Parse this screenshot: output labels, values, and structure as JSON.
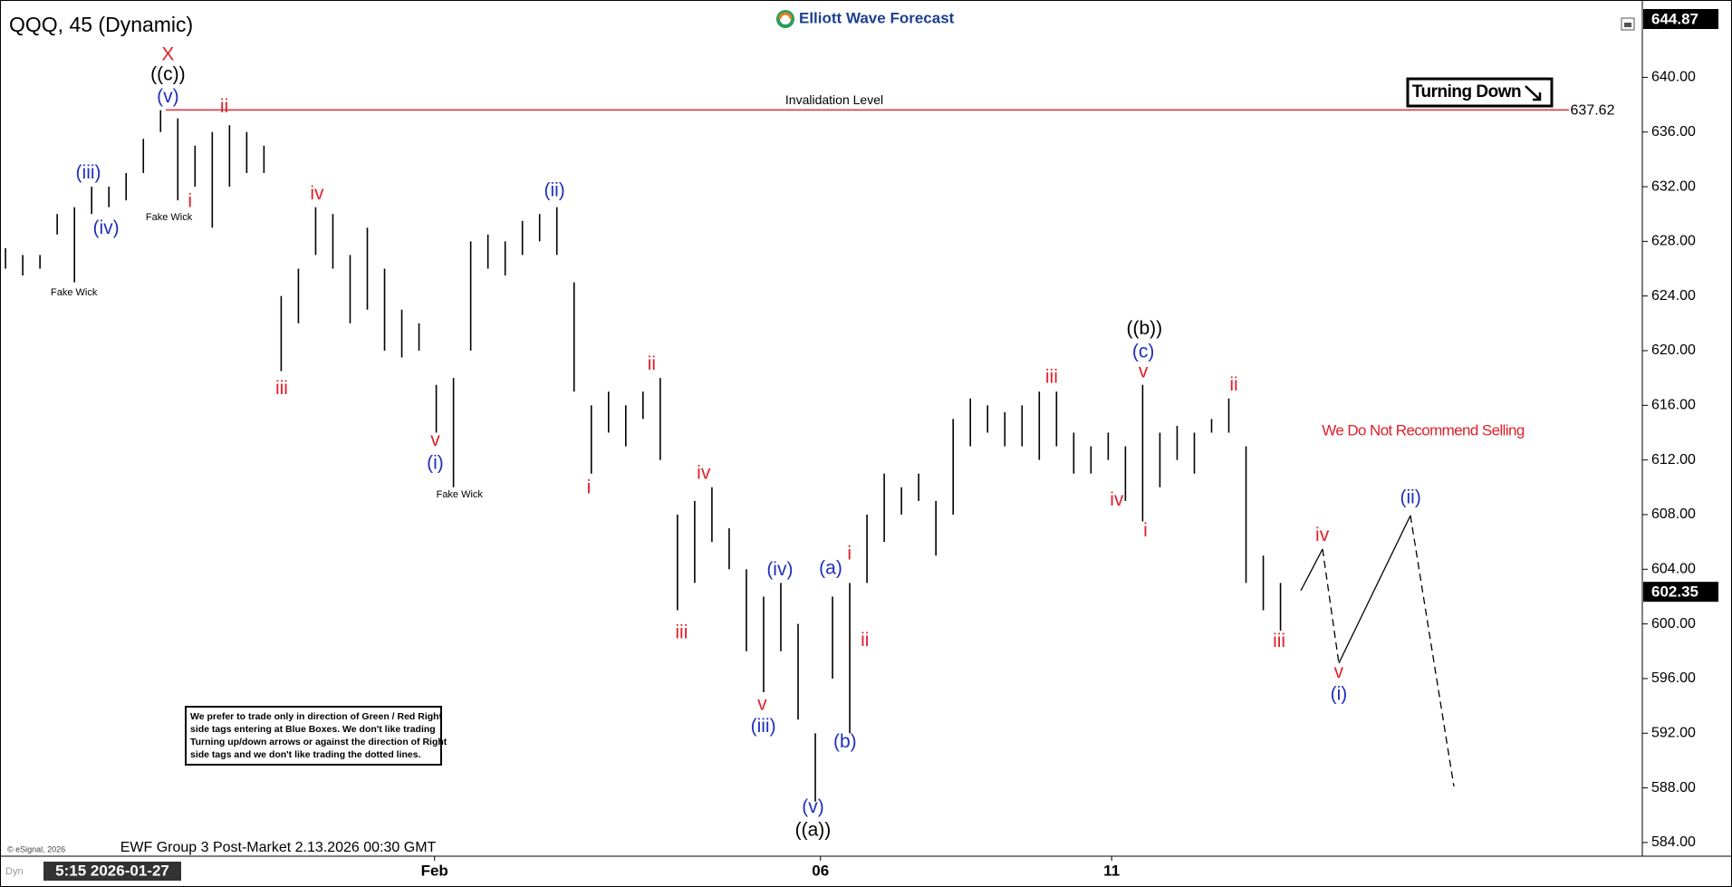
{
  "chart_data": {
    "type": "ohlc",
    "title": "QQQ, 45 (Dynamic)",
    "brand": "Elliott Wave Forecast",
    "highs": [
      627.5,
      627,
      627,
      630,
      630.5,
      632,
      632,
      633,
      635.5,
      637.6,
      637,
      635,
      636,
      636.5,
      636,
      635,
      624,
      626,
      630.5,
      630,
      627,
      629,
      626,
      623,
      622,
      617.5,
      618,
      628,
      628.5,
      628,
      629.5,
      630,
      630.5,
      625,
      616,
      617,
      616,
      617,
      618,
      608,
      609,
      610,
      607,
      604,
      602,
      603,
      600,
      592,
      602,
      603,
      608,
      611,
      610,
      611,
      609,
      615,
      616.5,
      616,
      615.5,
      616,
      617,
      617,
      614,
      613,
      614,
      613,
      617.5,
      614,
      614.5,
      614,
      615,
      616.5,
      613,
      605,
      603
    ],
    "lows": [
      626,
      625.5,
      626,
      628.5,
      625,
      630,
      630.5,
      631,
      633,
      636,
      631,
      632,
      629,
      632,
      633,
      633,
      618.5,
      622,
      627,
      626,
      622,
      623,
      620,
      619.5,
      620,
      614,
      610,
      620,
      626,
      625.5,
      627,
      628,
      627,
      617,
      611,
      614,
      613,
      615,
      612,
      601,
      603,
      606,
      604,
      598,
      595,
      598,
      593,
      587,
      596,
      592,
      603,
      606,
      608,
      609,
      605,
      608,
      613,
      614,
      613,
      613,
      612,
      613,
      611,
      611,
      612,
      609,
      607.5,
      610,
      612,
      611,
      614,
      614,
      603,
      601,
      599.5
    ],
    "xlim": [
      -0.32,
      95
    ],
    "xticks": [
      {
        "value": 24.9,
        "label": "Feb"
      },
      {
        "value": 47.3,
        "label": "06"
      },
      {
        "value": 64.2,
        "label": "11"
      }
    ],
    "ylim": [
      583,
      645
    ],
    "yticks": [
      {
        "value": 584,
        "label": "584.00"
      },
      {
        "value": 588,
        "label": "588.00"
      },
      {
        "value": 592,
        "label": "592.00"
      },
      {
        "value": 596,
        "label": "596.00"
      },
      {
        "value": 600,
        "label": "600.00"
      },
      {
        "value": 604,
        "label": "604.00"
      },
      {
        "value": 608,
        "label": "608.00"
      },
      {
        "value": 612,
        "label": "612.00"
      },
      {
        "value": 616,
        "label": "616.00"
      },
      {
        "value": 620,
        "label": "620.00"
      },
      {
        "value": 624,
        "label": "624.00"
      },
      {
        "value": 628,
        "label": "628.00"
      },
      {
        "value": 632,
        "label": "632.00"
      },
      {
        "value": 636,
        "label": "636.00"
      },
      {
        "value": 640,
        "label": "640.00"
      }
    ],
    "grid": false,
    "bar_color": "#000000",
    "top_price": 644.87,
    "last_price": 602.35,
    "invalidation_level": 637.62,
    "invalidation_label": "Invalidation Level",
    "invalidation_color": "#e0202a",
    "tag": "Turning Down",
    "recommendation": "We Do Not Recommend Selling",
    "disclaimer": [
      "We prefer to trade only in direction of Green / Red Right",
      "side tags entering at Blue Boxes. We don't like trading",
      "Turning up/down arrows or against the direction of Right",
      "side tags and we don't like trading the dotted lines."
    ],
    "footer": "EWF Group 3 Post-Market 2.13.2026 00:30 GMT",
    "copyright": "© eSignal, 2026",
    "cursor_time": "5:15 2026-01-27",
    "mode": "Dyn",
    "fake_wick_labels": [
      "Fake Wick",
      "Fake Wick",
      "Fake Wick"
    ],
    "wave_labels": [
      {
        "text": "X",
        "color": "#e0202a"
      },
      {
        "text": "((c))",
        "color": "#000000"
      },
      {
        "text": "(v)",
        "color": "#1f2fbf"
      },
      {
        "text": "ii",
        "color": "#e0202a"
      },
      {
        "text": "i",
        "color": "#e0202a"
      },
      {
        "text": "(iii)",
        "color": "#1f2fbf"
      },
      {
        "text": "(iv)",
        "color": "#1f2fbf"
      },
      {
        "text": "iii",
        "color": "#e0202a"
      },
      {
        "text": "iv",
        "color": "#e0202a"
      },
      {
        "text": "v",
        "color": "#e0202a"
      },
      {
        "text": "(i)",
        "color": "#1f2fbf"
      },
      {
        "text": "(ii)",
        "color": "#1f2fbf"
      },
      {
        "text": "ii",
        "color": "#e0202a"
      },
      {
        "text": "i",
        "color": "#e0202a"
      },
      {
        "text": "iv",
        "color": "#e0202a"
      },
      {
        "text": "iii",
        "color": "#e0202a"
      },
      {
        "text": "v",
        "color": "#e0202a"
      },
      {
        "text": "(iii)",
        "color": "#1f2fbf"
      },
      {
        "text": "(iv)",
        "color": "#1f2fbf"
      },
      {
        "text": "(v)",
        "color": "#1f2fbf"
      },
      {
        "text": "((a))",
        "color": "#000000"
      },
      {
        "text": "(a)",
        "color": "#1f2fbf"
      },
      {
        "text": "i",
        "color": "#e0202a"
      },
      {
        "text": "ii",
        "color": "#e0202a"
      },
      {
        "text": "(b)",
        "color": "#1f2fbf"
      },
      {
        "text": "iii",
        "color": "#e0202a"
      },
      {
        "text": "v",
        "color": "#e0202a"
      },
      {
        "text": "(c)",
        "color": "#1f2fbf"
      },
      {
        "text": "((b))",
        "color": "#000000"
      },
      {
        "text": "iv",
        "color": "#e0202a"
      },
      {
        "text": "i",
        "color": "#e0202a"
      },
      {
        "text": "ii",
        "color": "#e0202a"
      },
      {
        "text": "iii",
        "color": "#e0202a"
      },
      {
        "text": "iv",
        "color": "#e0202a"
      },
      {
        "text": "v",
        "color": "#e0202a"
      },
      {
        "text": "(i)",
        "color": "#1f2fbf"
      },
      {
        "text": "(ii)",
        "color": "#1f2fbf"
      }
    ]
  }
}
